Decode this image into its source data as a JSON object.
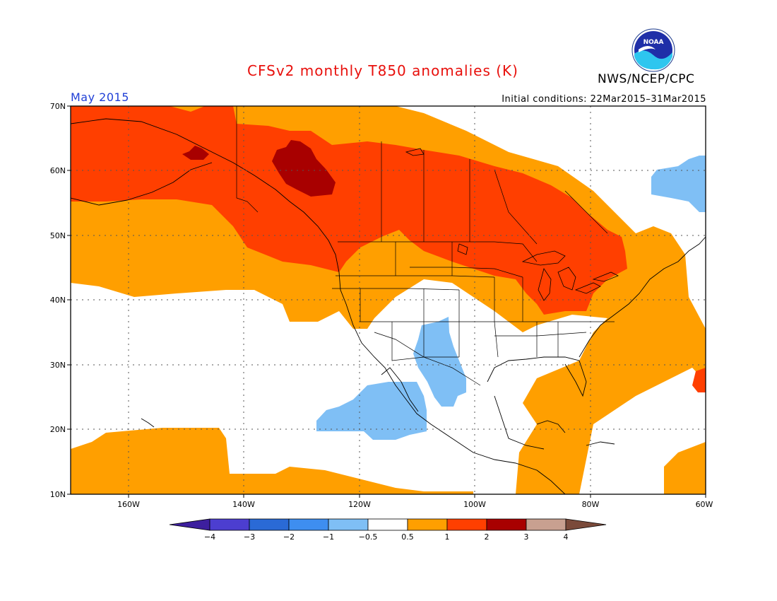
{
  "header": {
    "title": "CFSv2 monthly T850 anomalies (K)",
    "agency": "NWS/NCEP/CPC",
    "valid_month": "May 2015",
    "initial_conditions": "Initial conditions: 22Mar2015–31Mar2015",
    "logo_text": "NOAA"
  },
  "map": {
    "lat_labels": [
      "70N",
      "60N",
      "50N",
      "40N",
      "30N",
      "20N",
      "10N"
    ],
    "lon_labels": [
      "160W",
      "140W",
      "120W",
      "100W",
      "80W",
      "60W"
    ],
    "extent": {
      "lon_min": -170,
      "lon_max": -60,
      "lat_min": 10,
      "lat_max": 70
    }
  },
  "colorbar": {
    "labels": [
      "−4",
      "−3",
      "−2",
      "−1",
      "−0.5",
      "0.5",
      "1",
      "2",
      "3",
      "4"
    ],
    "colors": [
      "#3d1f9e",
      "#4c3ed0",
      "#2a6ad6",
      "#3e8ef0",
      "#7fbff5",
      "#ffffff",
      "#ff9f00",
      "#ff3f00",
      "#a80000",
      "#c8a090",
      "#7a4a3a"
    ]
  }
}
